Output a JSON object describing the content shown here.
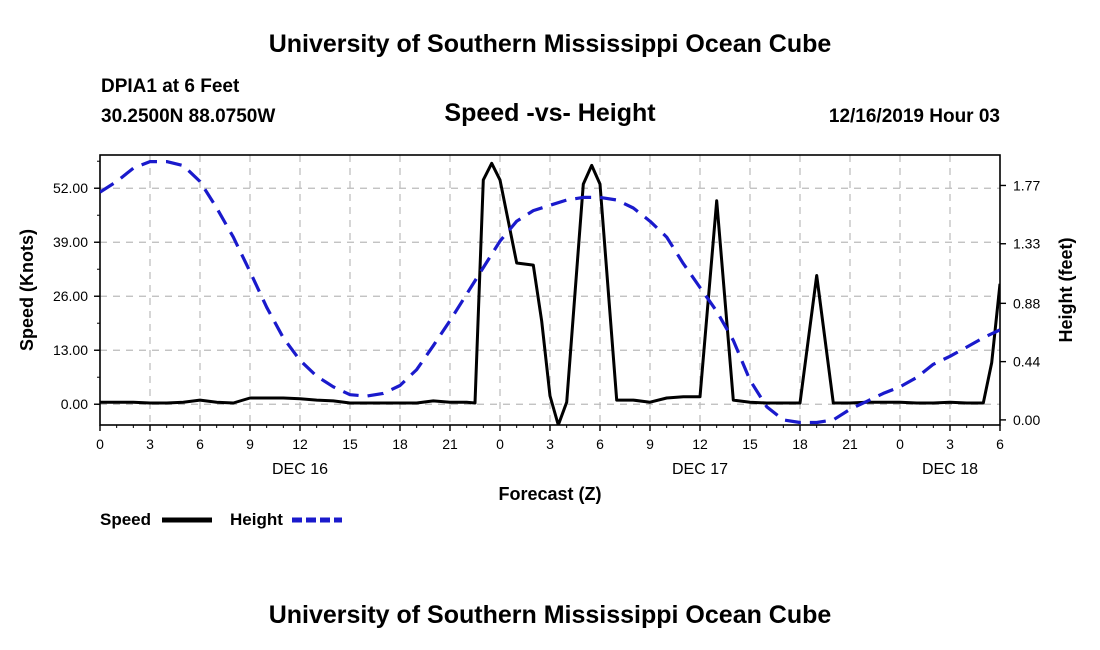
{
  "header": {
    "title_top": "University of Southern Mississippi Ocean Cube",
    "station": "DPIA1 at 6 Feet",
    "coords": "30.2500N 88.0750W",
    "plot_title": "Speed -vs- Height",
    "date": "12/16/2019 Hour 03"
  },
  "footer": {
    "title_bottom": "University of Southern Mississippi Ocean Cube"
  },
  "colors": {
    "speed": "#000000",
    "height": "#1a1acc",
    "grid": "#bbbbbb"
  },
  "chart_data": {
    "type": "line",
    "title": "Speed -vs- Height",
    "xlabel": "Forecast (Z)",
    "ylabel": "Speed (Knots)",
    "y2label": "Height (feet)",
    "xlim": [
      0,
      54
    ],
    "ylim": [
      -5,
      60
    ],
    "y2lim": [
      -0.0385,
      2.0
    ],
    "x_ticks": [
      0,
      3,
      6,
      9,
      12,
      15,
      18,
      21,
      24,
      27,
      30,
      33,
      36,
      39,
      42,
      45,
      48,
      51,
      54
    ],
    "x_tick_labels": [
      "0",
      "3",
      "6",
      "9",
      "12",
      "15",
      "18",
      "21",
      "0",
      "3",
      "6",
      "9",
      "12",
      "15",
      "18",
      "21",
      "0",
      "3",
      "6"
    ],
    "day_labels": [
      {
        "x": 12,
        "label": "DEC 16"
      },
      {
        "x": 36,
        "label": "DEC 17"
      },
      {
        "x": 51,
        "label": "DEC 18"
      }
    ],
    "y_ticks": [
      0,
      13,
      26,
      39,
      52
    ],
    "y_tick_labels": [
      "0.00",
      "13.00",
      "26.00",
      "39.00",
      "52.00"
    ],
    "y2_ticks": [
      0,
      0.44,
      0.88,
      1.33,
      1.77
    ],
    "y2_tick_labels": [
      "0.00",
      "0.44",
      "0.88",
      "1.33",
      "1.77"
    ],
    "series": [
      {
        "name": "Speed",
        "axis": "left",
        "style": "solid",
        "x": [
          0,
          1,
          2,
          3,
          4,
          5,
          6,
          7,
          8,
          9,
          10,
          11,
          12,
          13,
          14,
          15,
          16,
          17,
          18,
          19,
          20,
          21,
          22,
          22.5,
          23,
          23.5,
          24,
          25,
          26,
          26.5,
          27,
          27.5,
          28,
          29,
          29.5,
          30,
          31,
          32,
          33,
          34,
          35,
          36,
          37,
          38,
          39,
          40,
          41,
          42,
          43,
          44,
          45,
          46,
          47,
          48,
          49,
          50,
          51,
          52,
          53,
          53.5,
          54
        ],
        "values": [
          0.5,
          0.5,
          0.5,
          0.3,
          0.3,
          0.5,
          1,
          0.5,
          0.3,
          1.5,
          1.5,
          1.5,
          1.3,
          1,
          0.8,
          0.3,
          0.3,
          0.3,
          0.3,
          0.3,
          0.8,
          0.5,
          0.5,
          0.3,
          54,
          58,
          54,
          34,
          33.5,
          20,
          2,
          -5,
          0.5,
          53,
          57.5,
          53,
          1,
          1,
          0.5,
          1.5,
          1.8,
          1.8,
          49,
          1,
          0.5,
          0.3,
          0.3,
          0.3,
          31,
          0.3,
          0.3,
          0.5,
          0.5,
          0.5,
          0.3,
          0.3,
          0.5,
          0.3,
          0.3,
          10,
          29
        ]
      },
      {
        "name": "Height",
        "axis": "right",
        "style": "dashed",
        "x": [
          0,
          1,
          2,
          3,
          4,
          5,
          6,
          7,
          8,
          9,
          10,
          11,
          12,
          13,
          14,
          15,
          16,
          17,
          18,
          19,
          20,
          21,
          22,
          23,
          24,
          25,
          26,
          27,
          28,
          29,
          30,
          31,
          32,
          33,
          34,
          35,
          36,
          37,
          38,
          39,
          40,
          41,
          42,
          43,
          44,
          45,
          46,
          47,
          48,
          49,
          50,
          51,
          52,
          53,
          54
        ],
        "values": [
          1.72,
          1.8,
          1.9,
          1.95,
          1.95,
          1.92,
          1.8,
          1.6,
          1.38,
          1.12,
          0.85,
          0.62,
          0.45,
          0.33,
          0.25,
          0.19,
          0.18,
          0.2,
          0.26,
          0.38,
          0.56,
          0.75,
          0.95,
          1.15,
          1.35,
          1.5,
          1.58,
          1.62,
          1.66,
          1.68,
          1.68,
          1.66,
          1.6,
          1.5,
          1.38,
          1.18,
          1.0,
          0.82,
          0.6,
          0.3,
          0.1,
          0.0,
          -0.02,
          -0.02,
          0.0,
          0.08,
          0.14,
          0.2,
          0.25,
          0.32,
          0.42,
          0.48,
          0.55,
          0.62,
          0.68
        ]
      }
    ],
    "legend": [
      {
        "label": "Speed"
      },
      {
        "label": "Height"
      }
    ]
  }
}
